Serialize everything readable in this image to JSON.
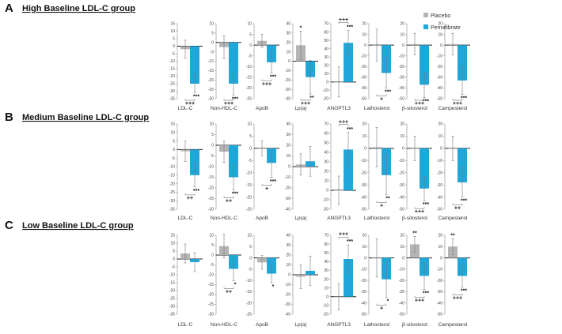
{
  "legend": {
    "placebo": "Placebo",
    "pemafibrate": "Pemafibrate",
    "placebo_color": "#b4b4b4",
    "pemafibrate_color": "#1ea7d8"
  },
  "chart_data": [
    {
      "type": "bar",
      "panel_letter": "A",
      "title": "High Baseline LDL-C group",
      "series_names": [
        "Placebo",
        "Pemafibrate"
      ],
      "charts": [
        {
          "label": "LDL-C",
          "yticks": [
            "15",
            "10",
            "5",
            "0",
            "-5",
            "-10",
            "-15",
            "-20",
            "-25",
            "-30",
            "-35"
          ],
          "ylim": [
            -35,
            15
          ],
          "placebo": -2,
          "pemafibrate": -25,
          "placebo_err": 6,
          "pemafibrate_err": 6,
          "sig_pema": "***",
          "sig_placebo": "",
          "sig_between": "+++"
        },
        {
          "label": "Non-HDL-C",
          "yticks": [
            "10",
            "5",
            "0",
            "-5",
            "-10",
            "-15",
            "-20",
            "-25",
            "-30"
          ],
          "ylim": [
            -30,
            10
          ],
          "placebo": -2.5,
          "pemafibrate": -22,
          "placebo_err": 6,
          "pemafibrate_err": 6,
          "sig_pema": "***",
          "sig_placebo": "",
          "sig_between": "+++"
        },
        {
          "label": "ApoB",
          "yticks": [
            "10",
            "5",
            "0",
            "-5",
            "-10",
            "-15",
            "-20",
            "-25"
          ],
          "ylim": [
            -25,
            10
          ],
          "placebo": 2,
          "pemafibrate": -8,
          "placebo_err": 3,
          "pemafibrate_err": 5,
          "sig_pema": "***",
          "sig_placebo": "",
          "sig_between": "+++"
        },
        {
          "label": "Lp(a)",
          "yticks": [
            "40",
            "30",
            "20",
            "10",
            "0",
            "-10",
            "-20",
            "-30",
            "-40"
          ],
          "ylim": [
            -40,
            40
          ],
          "placebo": 17,
          "pemafibrate": -17,
          "placebo_err": 15,
          "pemafibrate_err": 18,
          "sig_pema": "**",
          "sig_placebo": "*",
          "sig_between": "+++"
        },
        {
          "label": "ANGPTL3",
          "yticks": [
            "70",
            "60",
            "50",
            "40",
            "30",
            "20",
            "10",
            "0",
            "-10",
            "-20"
          ],
          "ylim": [
            -20,
            70
          ],
          "placebo": 0,
          "pemafibrate": 47,
          "placebo_err": 18,
          "pemafibrate_err": 15,
          "sig_pema": "***",
          "sig_placebo": "",
          "sig_between": "+++"
        },
        {
          "label": "Lathosterol",
          "yticks": [
            "20",
            "10",
            "0",
            "-10",
            "-20",
            "-30",
            "-40",
            "-50"
          ],
          "ylim": [
            -50,
            20
          ],
          "placebo": 0,
          "pemafibrate": -26,
          "placebo_err": 15,
          "pemafibrate_err": 14,
          "sig_pema": "***",
          "sig_placebo": "",
          "sig_between": "+"
        },
        {
          "label": "β-sitosterol",
          "yticks": [
            "20",
            "10",
            "0",
            "-10",
            "-20",
            "-30",
            "-40",
            "-50"
          ],
          "ylim": [
            -50,
            20
          ],
          "placebo": 1,
          "pemafibrate": -37,
          "placebo_err": 10,
          "pemafibrate_err": 12,
          "sig_pema": "***",
          "sig_placebo": "",
          "sig_between": "+++"
        },
        {
          "label": "Campesterol",
          "yticks": [
            "20",
            "10",
            "0",
            "-10",
            "-20",
            "-30",
            "-40",
            "-50"
          ],
          "ylim": [
            -50,
            20
          ],
          "placebo": 1,
          "pemafibrate": -33,
          "placebo_err": 10,
          "pemafibrate_err": 13,
          "sig_pema": "***",
          "sig_placebo": "",
          "sig_between": "+++"
        }
      ]
    },
    {
      "type": "bar",
      "panel_letter": "B",
      "title": "Medium Baseline LDL-C group",
      "series_names": [
        "Placebo",
        "Pemafibrate"
      ],
      "charts": [
        {
          "label": "LDL-C",
          "yticks": [
            "15",
            "10",
            "5",
            "0",
            "-5",
            "-10",
            "-15",
            "-20",
            "-25",
            "-30",
            "-35"
          ],
          "ylim": [
            -35,
            15
          ],
          "placebo": -1,
          "pemafibrate": -15,
          "placebo_err": 6,
          "pemafibrate_err": 7,
          "sig_pema": "***",
          "sig_placebo": "",
          "sig_between": "++"
        },
        {
          "label": "Non-HDL-C",
          "yticks": [
            "10",
            "5",
            "0",
            "-5",
            "-10",
            "-15",
            "-20",
            "-25",
            "-30"
          ],
          "ylim": [
            -30,
            10
          ],
          "placebo": -3,
          "pemafibrate": -15,
          "placebo_err": 5,
          "pemafibrate_err": 6,
          "sig_pema": "***",
          "sig_placebo": "",
          "sig_between": "++"
        },
        {
          "label": "ApoB",
          "yticks": [
            "10",
            "5",
            "0",
            "-5",
            "-10",
            "-15",
            "-20",
            "-25"
          ],
          "ylim": [
            -25,
            10
          ],
          "placebo": 0,
          "pemafibrate": -6,
          "placebo_err": 3,
          "pemafibrate_err": 6,
          "sig_pema": "***",
          "sig_placebo": "",
          "sig_between": "+"
        },
        {
          "label": "Lp(a)",
          "yticks": [
            "40",
            "30",
            "20",
            "10",
            "0",
            "-10",
            "-20",
            "-30",
            "-40"
          ],
          "ylim": [
            -40,
            40
          ],
          "placebo": 2,
          "pemafibrate": 5,
          "placebo_err": 10,
          "pemafibrate_err": 14,
          "sig_pema": "",
          "sig_placebo": "",
          "sig_between": ""
        },
        {
          "label": "ANGPTL3",
          "yticks": [
            "70",
            "60",
            "50",
            "40",
            "30",
            "20",
            "10",
            "0",
            "-10",
            "-20"
          ],
          "ylim": [
            -20,
            70
          ],
          "placebo": 0,
          "pemafibrate": 43,
          "placebo_err": 15,
          "pemafibrate_err": 18,
          "sig_pema": "***",
          "sig_placebo": "",
          "sig_between": "+++"
        },
        {
          "label": "Lathosterol",
          "yticks": [
            "20",
            "10",
            "0",
            "-10",
            "-20",
            "-30",
            "-40",
            "-50"
          ],
          "ylim": [
            -50,
            20
          ],
          "placebo": 1,
          "pemafibrate": -22,
          "placebo_err": 16,
          "pemafibrate_err": 16,
          "sig_pema": "**",
          "sig_placebo": "",
          "sig_between": "+"
        },
        {
          "label": "β-sitosterol",
          "yticks": [
            "20",
            "10",
            "0",
            "-10",
            "-20",
            "-30",
            "-40",
            "-50"
          ],
          "ylim": [
            -50,
            20
          ],
          "placebo": 0,
          "pemafibrate": -33,
          "placebo_err": 10,
          "pemafibrate_err": 10,
          "sig_pema": "***",
          "sig_placebo": "",
          "sig_between": "+++"
        },
        {
          "label": "Campesterol",
          "yticks": [
            "20",
            "10",
            "0",
            "-10",
            "-20",
            "-30",
            "-40",
            "-50"
          ],
          "ylim": [
            -50,
            20
          ],
          "placebo": 0,
          "pemafibrate": -28,
          "placebo_err": 10,
          "pemafibrate_err": 12,
          "sig_pema": "***",
          "sig_placebo": "",
          "sig_between": "++"
        }
      ]
    },
    {
      "type": "bar",
      "panel_letter": "C",
      "title": "Low Baseline LDL-C group",
      "series_names": [
        "Placebo",
        "Pemafibrate"
      ],
      "charts": [
        {
          "label": "LDL-C",
          "yticks": [
            "15",
            "10",
            "5",
            "0",
            "-5",
            "-10",
            "-15",
            "-20",
            "-25",
            "-30",
            "-35"
          ],
          "ylim": [
            -35,
            15
          ],
          "placebo": 3.5,
          "pemafibrate": -2,
          "placebo_err": 6,
          "pemafibrate_err": 6,
          "sig_pema": "",
          "sig_placebo": "",
          "sig_between": ""
        },
        {
          "label": "Non-HDL-C",
          "yticks": [
            "10",
            "5",
            "0",
            "-5",
            "-10",
            "-15",
            "-20",
            "-25",
            "-30"
          ],
          "ylim": [
            -30,
            10
          ],
          "placebo": 4.5,
          "pemafibrate": -7,
          "placebo_err": 6,
          "pemafibrate_err": 6,
          "sig_pema": "*",
          "sig_placebo": "",
          "sig_between": "++"
        },
        {
          "label": "ApoB",
          "yticks": [
            "10",
            "5",
            "0",
            "-5",
            "-10",
            "-15",
            "-20",
            "-25"
          ],
          "ylim": [
            -25,
            10
          ],
          "placebo": -2,
          "pemafibrate": -7,
          "placebo_err": 3,
          "pemafibrate_err": 4,
          "sig_pema": "*",
          "sig_placebo": "",
          "sig_between": ""
        },
        {
          "label": "Lp(a)",
          "yticks": [
            "40",
            "30",
            "20",
            "10",
            "0",
            "-10",
            "-20",
            "-30",
            "-40"
          ],
          "ylim": [
            -40,
            40
          ],
          "placebo": -2,
          "pemafibrate": 4,
          "placebo_err": 12,
          "pemafibrate_err": 15,
          "sig_pema": "",
          "sig_placebo": "",
          "sig_between": ""
        },
        {
          "label": "ANGPTL3",
          "yticks": [
            "70",
            "60",
            "50",
            "40",
            "30",
            "20",
            "10",
            "0",
            "-10",
            "-20"
          ],
          "ylim": [
            -20,
            70
          ],
          "placebo": 0,
          "pemafibrate": 43,
          "placebo_err": 15,
          "pemafibrate_err": 16,
          "sig_pema": "***",
          "sig_placebo": "",
          "sig_between": "+++"
        },
        {
          "label": "Lathosterol",
          "yticks": [
            "20",
            "10",
            "0",
            "-10",
            "-20",
            "-30",
            "-40",
            "-50"
          ],
          "ylim": [
            -50,
            20
          ],
          "placebo": 0,
          "pemafibrate": -19,
          "placebo_err": 17,
          "pemafibrate_err": 16,
          "sig_pema": "*",
          "sig_placebo": "",
          "sig_between": "+"
        },
        {
          "label": "β-sitosterol",
          "yticks": [
            "20",
            "10",
            "0",
            "-10",
            "-20",
            "-30",
            "-40",
            "-50"
          ],
          "ylim": [
            -50,
            20
          ],
          "placebo": 12,
          "pemafibrate": -16,
          "placebo_err": 7,
          "pemafibrate_err": 12,
          "sig_pema": "***",
          "sig_placebo": "**",
          "sig_between": "+++"
        },
        {
          "label": "Campesterol",
          "yticks": [
            "20",
            "10",
            "0",
            "-10",
            "-20",
            "-30",
            "-40",
            "-50"
          ],
          "ylim": [
            -50,
            20
          ],
          "placebo": 10,
          "pemafibrate": -16,
          "placebo_err": 7,
          "pemafibrate_err": 10,
          "sig_pema": "***",
          "sig_placebo": "**",
          "sig_between": "+++"
        }
      ]
    }
  ]
}
